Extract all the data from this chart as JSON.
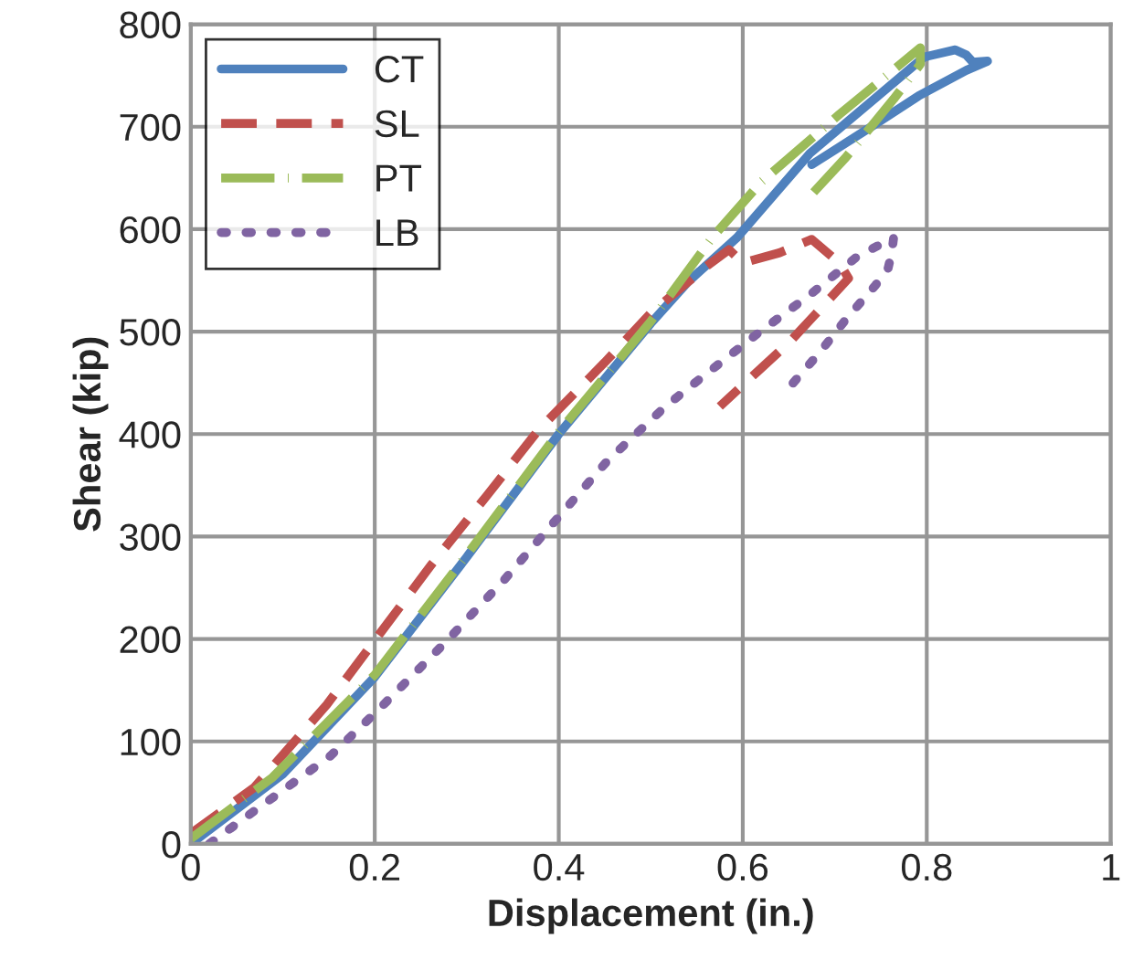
{
  "chart_data": {
    "type": "line",
    "xlabel": "Displacement (in.)",
    "ylabel": "Shear (kip)",
    "xlim": [
      0,
      1
    ],
    "xticks": [
      0,
      0.2,
      0.4,
      0.6,
      0.8,
      1
    ],
    "ylim": [
      0,
      800
    ],
    "yticks": [
      0,
      100,
      200,
      300,
      400,
      500,
      600,
      700,
      800
    ],
    "grid": true,
    "legend": "top left",
    "series": [
      {
        "name": "CT",
        "color": "#4f81bd",
        "line_style": "solid",
        "x": [
          0,
          0.1,
          0.2,
          0.3,
          0.4,
          0.5,
          0.541,
          0.594,
          0.673,
          0.797,
          0.831,
          0.843,
          0.85,
          0.866,
          0.843,
          0.791,
          0.738,
          0.675
        ],
        "values": [
          0,
          68,
          163,
          280,
          400,
          508,
          549,
          592,
          674,
          768,
          775,
          770,
          763,
          764,
          755,
          730,
          699,
          663
        ]
      },
      {
        "name": "SL",
        "color": "#c0504d",
        "line_style": "dashed",
        "x": [
          0,
          0.069,
          0.148,
          0.207,
          0.262,
          0.321,
          0.378,
          0.45,
          0.5,
          0.561,
          0.585,
          0.6,
          0.64,
          0.675,
          0.705,
          0.715,
          0.679,
          0.65,
          0.616,
          0.575
        ],
        "values": [
          10,
          55,
          136,
          207,
          273,
          339,
          404,
          470,
          518,
          564,
          580,
          567,
          577,
          590,
          567,
          552,
          517,
          489,
          461,
          427
        ]
      },
      {
        "name": "PT",
        "color": "#9bbb59",
        "line_style": "dashdot",
        "x": [
          0,
          0.089,
          0.2,
          0.3,
          0.4,
          0.5,
          0.567,
          0.62,
          0.705,
          0.793,
          0.793,
          0.764,
          0.712,
          0.677
        ],
        "values": [
          5,
          65,
          165,
          282,
          402,
          510,
          592,
          646,
          712,
          777,
          761,
          727,
          670,
          636
        ]
      },
      {
        "name": "LB",
        "color": "#8064a2",
        "line_style": "dotted",
        "x": [
          0.02,
          0.075,
          0.152,
          0.203,
          0.276,
          0.341,
          0.39,
          0.453,
          0.516,
          0.555,
          0.616,
          0.673,
          0.724,
          0.764,
          0.762,
          0.758,
          0.744,
          0.713,
          0.683,
          0.65
        ],
        "values": [
          0,
          36,
          86,
          130,
          196,
          258,
          309,
          374,
          427,
          455,
          498,
          536,
          573,
          592,
          577,
          562,
          545,
          513,
          479,
          445
        ]
      }
    ]
  }
}
